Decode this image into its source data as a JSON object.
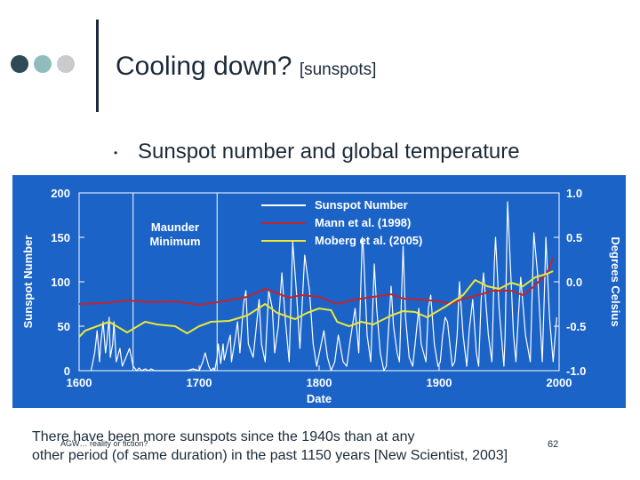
{
  "header": {
    "title": "Cooling down?",
    "title_suffix": "[sunspots]",
    "dot_colors": [
      "#2e4a57",
      "#8fbcbc",
      "#c8cccc"
    ]
  },
  "bullet": {
    "marker": "•",
    "text": "Sunspot number and global temperature"
  },
  "chart_data": {
    "type": "line",
    "background": "#1b63c6",
    "xlabel": "Date",
    "ylabel_left": "Sunspot Number",
    "ylabel_right": "Degrees Celsius",
    "xlim": [
      1600,
      2000
    ],
    "ylim_left": [
      0,
      200
    ],
    "ylim_right": [
      -1.0,
      1.0
    ],
    "x_ticks": [
      "1600",
      "1700",
      "1800",
      "1900",
      "2000"
    ],
    "y_ticks_left": [
      "200",
      "150",
      "100",
      "50",
      "0"
    ],
    "y_ticks_right": [
      "1.0",
      "0.5",
      "0.0",
      "-0.5",
      "-1.0"
    ],
    "annotation": "Maunder Minimum",
    "maunder_range": [
      1645,
      1715
    ],
    "legend_position": "top-center",
    "series": [
      {
        "name": "Sunspot Number",
        "axis": "left",
        "color": "#ffffff",
        "x": [
          1610,
          1613,
          1615,
          1617,
          1618,
          1620,
          1622,
          1623,
          1625,
          1626,
          1628,
          1629,
          1631,
          1634,
          1636,
          1639,
          1642,
          1645,
          1648,
          1650,
          1652,
          1655,
          1658,
          1660,
          1663,
          1666,
          1670,
          1675,
          1680,
          1685,
          1690,
          1695,
          1700,
          1703,
          1705,
          1708,
          1710,
          1712,
          1713,
          1715,
          1716,
          1718,
          1720,
          1721,
          1724,
          1726,
          1727,
          1730,
          1732,
          1734,
          1737,
          1739,
          1741,
          1745,
          1747,
          1750,
          1752,
          1755,
          1758,
          1761,
          1763,
          1766,
          1769,
          1772,
          1775,
          1778,
          1781,
          1784,
          1788,
          1792,
          1795,
          1798,
          1804,
          1807,
          1810,
          1813,
          1816,
          1820,
          1823,
          1826,
          1830,
          1833,
          1836,
          1837,
          1840,
          1843,
          1846,
          1848,
          1851,
          1854,
          1856,
          1860,
          1862,
          1865,
          1867,
          1870,
          1872,
          1875,
          1878,
          1880,
          1883,
          1885,
          1889,
          1891,
          1893,
          1896,
          1899,
          1901,
          1903,
          1905,
          1907,
          1911,
          1913,
          1915,
          1917,
          1920,
          1923,
          1925,
          1928,
          1931,
          1933,
          1935,
          1937,
          1941,
          1944,
          1946,
          1947,
          1950,
          1954,
          1955,
          1957,
          1962,
          1964,
          1966,
          1968,
          1972,
          1976,
          1978,
          1979,
          1982,
          1986,
          1988,
          1989,
          1992,
          1995,
          1998
        ],
        "y": [
          0,
          20,
          45,
          10,
          30,
          55,
          20,
          30,
          60,
          15,
          30,
          55,
          10,
          25,
          5,
          15,
          25,
          5,
          0,
          3,
          0,
          2,
          0,
          2,
          0,
          0,
          0,
          0,
          0,
          0,
          0,
          2,
          0,
          10,
          20,
          5,
          0,
          3,
          0,
          15,
          30,
          8,
          30,
          12,
          30,
          40,
          10,
          35,
          55,
          20,
          75,
          90,
          30,
          15,
          40,
          80,
          30,
          10,
          90,
          70,
          20,
          50,
          110,
          55,
          10,
          145,
          90,
          25,
          130,
          90,
          30,
          5,
          45,
          15,
          0,
          10,
          40,
          10,
          5,
          35,
          70,
          20,
          150,
          135,
          40,
          10,
          120,
          70,
          20,
          0,
          5,
          95,
          50,
          20,
          10,
          140,
          60,
          15,
          5,
          30,
          70,
          30,
          10,
          70,
          85,
          30,
          5,
          10,
          40,
          60,
          55,
          5,
          10,
          40,
          100,
          40,
          5,
          45,
          80,
          20,
          5,
          80,
          110,
          40,
          10,
          120,
          150,
          70,
          5,
          40,
          190,
          40,
          10,
          60,
          105,
          40,
          10,
          110,
          155,
          110,
          10,
          100,
          150,
          60,
          10,
          60
        ]
      },
      {
        "name": "Mann et al. (1998)",
        "axis": "right",
        "color": "#c0252e",
        "x": [
          1600,
          1620,
          1640,
          1660,
          1680,
          1700,
          1720,
          1740,
          1755,
          1765,
          1775,
          1785,
          1800,
          1815,
          1830,
          1845,
          1860,
          1870,
          1885,
          1900,
          1910,
          1920,
          1935,
          1945,
          1960,
          1970,
          1980,
          1990,
          1995
        ],
        "y": [
          -0.25,
          -0.24,
          -0.21,
          -0.23,
          -0.22,
          -0.26,
          -0.22,
          -0.17,
          -0.08,
          -0.13,
          -0.18,
          -0.15,
          -0.17,
          -0.25,
          -0.2,
          -0.17,
          -0.14,
          -0.19,
          -0.2,
          -0.22,
          -0.25,
          -0.19,
          -0.14,
          -0.1,
          -0.1,
          -0.15,
          -0.04,
          0.1,
          0.27
        ]
      },
      {
        "name": "Moberg et al. (2005)",
        "axis": "right",
        "color": "#e8e83a",
        "x": [
          1600,
          1605,
          1615,
          1625,
          1635,
          1640,
          1655,
          1665,
          1680,
          1690,
          1700,
          1710,
          1725,
          1740,
          1755,
          1765,
          1780,
          1790,
          1800,
          1810,
          1815,
          1825,
          1835,
          1845,
          1860,
          1870,
          1880,
          1890,
          1905,
          1920,
          1930,
          1940,
          1950,
          1960,
          1970,
          1980,
          1990,
          1995
        ],
        "y": [
          -0.62,
          -0.55,
          -0.5,
          -0.45,
          -0.53,
          -0.57,
          -0.45,
          -0.48,
          -0.5,
          -0.58,
          -0.5,
          -0.45,
          -0.44,
          -0.38,
          -0.25,
          -0.35,
          -0.42,
          -0.35,
          -0.3,
          -0.32,
          -0.45,
          -0.5,
          -0.45,
          -0.48,
          -0.38,
          -0.33,
          -0.34,
          -0.4,
          -0.28,
          -0.15,
          0.02,
          -0.05,
          -0.08,
          -0.01,
          -0.05,
          0.05,
          0.09,
          0.12
        ]
      }
    ]
  },
  "caption": {
    "line1": "There have been more sunspots since the 1940s than at any",
    "line2": "other period (of same duration) in the past 1150 years [New Scientist, 2003]"
  },
  "footer": {
    "left": "AGW… reality or fiction?",
    "page": "62"
  }
}
